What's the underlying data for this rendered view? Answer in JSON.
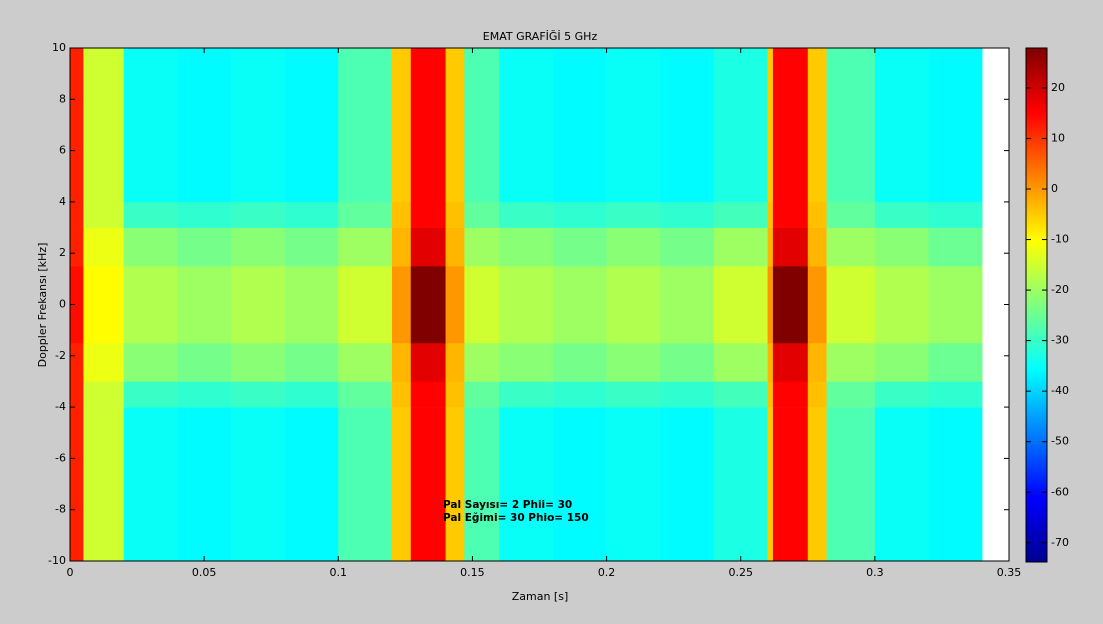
{
  "chart_data": {
    "type": "heatmap",
    "title": "EMAT GRAFİĞİ 5 GHz",
    "x_label": "Zaman [s]",
    "y_label": "Doppler Frekansı [kHz]",
    "xlim": [
      0,
      0.35
    ],
    "xticks": [
      0,
      0.05,
      0.1,
      0.15,
      0.2,
      0.25,
      0.3,
      0.35
    ],
    "ylim": [
      -10,
      10
    ],
    "yticks": [
      -10,
      -8,
      -6,
      -4,
      -2,
      0,
      2,
      4,
      6,
      8,
      10
    ],
    "colormap": "jet",
    "clim": [
      -73.8,
      27.9
    ],
    "cticks": [
      -70,
      -60,
      -50,
      -40,
      -30,
      -20,
      -10,
      0,
      10,
      20
    ],
    "x_edges": [
      0,
      0.005,
      0.02,
      0.04,
      0.06,
      0.08,
      0.1,
      0.12,
      0.127,
      0.14,
      0.147,
      0.16,
      0.18,
      0.2,
      0.22,
      0.24,
      0.26,
      0.262,
      0.275,
      0.282,
      0.3,
      0.32,
      0.34
    ],
    "y_edges": [
      -10,
      -4,
      -3,
      -1.5,
      1.5,
      3,
      4,
      10
    ],
    "values": [
      [
        12,
        -15,
        -35,
        -36,
        -35,
        -36,
        -28,
        -5,
        15,
        -5,
        -28,
        -35,
        -36,
        -35,
        -36,
        -33,
        -5,
        15,
        -5,
        -28,
        -35,
        -36
      ],
      [
        12,
        -15,
        -30,
        -31,
        -30,
        -31,
        -26,
        -4,
        15,
        -4,
        -26,
        -30,
        -31,
        -30,
        -31,
        -29,
        -4,
        15,
        -4,
        -26,
        -30,
        -31
      ],
      [
        12,
        -12,
        -22,
        -24,
        -22,
        -24,
        -20,
        -3,
        18,
        -3,
        -20,
        -22,
        -24,
        -22,
        -24,
        -20,
        -3,
        18,
        -3,
        -20,
        -22,
        -25
      ],
      [
        14,
        -10,
        -18,
        -20,
        -18,
        -20,
        -15,
        0,
        28,
        0,
        -15,
        -18,
        -20,
        -18,
        -20,
        -15,
        0,
        28,
        0,
        -15,
        -18,
        -20
      ],
      [
        12,
        -12,
        -22,
        -24,
        -22,
        -24,
        -20,
        -3,
        18,
        -3,
        -20,
        -22,
        -24,
        -22,
        -24,
        -20,
        -3,
        18,
        -3,
        -20,
        -22,
        -25
      ],
      [
        12,
        -15,
        -30,
        -31,
        -30,
        -31,
        -26,
        -4,
        15,
        -4,
        -26,
        -30,
        -31,
        -30,
        -31,
        -29,
        -4,
        15,
        -4,
        -26,
        -30,
        -31
      ],
      [
        12,
        -15,
        -35,
        -36,
        -35,
        -36,
        -28,
        -5,
        15,
        -5,
        -28,
        -35,
        -36,
        -35,
        -36,
        -33,
        -5,
        15,
        -5,
        -28,
        -35,
        -36
      ]
    ],
    "annotations": [
      "Pal Sayısı= 2 Phii= 30",
      "Pal Eğimi= 30 Phio= 150"
    ]
  }
}
